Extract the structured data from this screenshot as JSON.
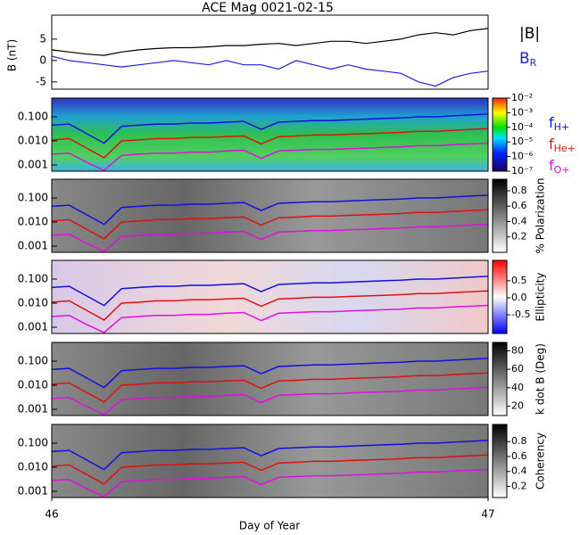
{
  "chart_data": [
    {
      "type": "line",
      "title": "ACE Mag 0021-02-15",
      "ylabel": "B (nT)",
      "x": [
        46.0,
        46.04,
        46.08,
        46.12,
        46.16,
        46.2,
        46.24,
        46.28,
        46.32,
        46.36,
        46.4,
        46.44,
        46.48,
        46.52,
        46.56,
        46.6,
        46.64,
        46.68,
        46.72,
        46.76,
        46.8,
        46.84,
        46.88,
        46.92,
        46.96,
        47.0
      ],
      "xlim": [
        46,
        47
      ],
      "ylim": [
        -6.7,
        10.6
      ],
      "yticks": [
        -5,
        0,
        5
      ],
      "series": [
        {
          "name": "|B|",
          "color": "#000000",
          "values": [
            2.5,
            2,
            1.5,
            1.2,
            2,
            2.5,
            2.8,
            3,
            3,
            3.2,
            3.5,
            3.5,
            3.8,
            4,
            3.5,
            4,
            4.5,
            4.5,
            4,
            4.5,
            5,
            6,
            6.5,
            6,
            7,
            7.5
          ]
        },
        {
          "name": "BR",
          "color": "#2020e0",
          "values": [
            1,
            0,
            -0.5,
            -1,
            -1.5,
            -1,
            -0.5,
            0,
            -0.5,
            -1,
            0,
            -1,
            -1,
            -2,
            0,
            -1,
            -2,
            -1,
            -2,
            -2.5,
            -3,
            -5,
            -6,
            -4,
            -3,
            -2.5
          ]
        }
      ]
    },
    {
      "type": "spectrogram",
      "xlabel": "Day of Year",
      "log_y": true,
      "x": [
        46.0,
        46.04,
        46.08,
        46.12,
        46.16,
        46.2,
        46.24,
        46.28,
        46.32,
        46.36,
        46.4,
        46.44,
        46.48,
        46.52,
        46.56,
        46.6,
        46.64,
        46.68,
        46.72,
        46.76,
        46.8,
        46.84,
        46.88,
        46.92,
        46.96,
        47.0
      ],
      "xlim": [
        46,
        47
      ],
      "xticks": [
        46,
        47
      ],
      "ylim": [
        0.00055,
        0.6
      ],
      "yticks": [
        {
          "value": 0.001,
          "label": "0.001"
        },
        {
          "value": 0.01,
          "label": "0.010"
        },
        {
          "value": 0.1,
          "label": "0.100"
        }
      ],
      "series": [
        {
          "name": "fH+",
          "color": "#1010e0",
          "values": [
            0.045,
            0.05,
            0.02,
            0.008,
            0.04,
            0.045,
            0.05,
            0.05,
            0.055,
            0.055,
            0.06,
            0.065,
            0.03,
            0.06,
            0.065,
            0.07,
            0.07,
            0.075,
            0.08,
            0.085,
            0.09,
            0.1,
            0.1,
            0.11,
            0.12,
            0.13
          ]
        },
        {
          "name": "fHe+",
          "color": "#e01010",
          "values": [
            0.011,
            0.0125,
            0.005,
            0.002,
            0.01,
            0.011,
            0.0125,
            0.0125,
            0.014,
            0.014,
            0.015,
            0.016,
            0.0075,
            0.015,
            0.016,
            0.0175,
            0.0175,
            0.019,
            0.02,
            0.021,
            0.0225,
            0.025,
            0.025,
            0.0275,
            0.03,
            0.0325
          ]
        },
        {
          "name": "fO+",
          "color": "#e010e0",
          "values": [
            0.0028,
            0.0031,
            0.0013,
            0.0006,
            0.0025,
            0.0028,
            0.0031,
            0.0031,
            0.0034,
            0.0034,
            0.0038,
            0.0041,
            0.0019,
            0.0038,
            0.0041,
            0.0044,
            0.0044,
            0.0047,
            0.005,
            0.0053,
            0.0056,
            0.0063,
            0.0063,
            0.0069,
            0.0075,
            0.0081
          ]
        }
      ],
      "panels": [
        {
          "colormap": "rainbow",
          "log_c": true,
          "clim": [
            1e-07,
            0.01
          ],
          "cticks": [
            {
              "value": 0.01,
              "label": "10⁻²"
            },
            {
              "value": 0.001,
              "label": "10⁻³"
            },
            {
              "value": 0.0001,
              "label": "10⁻⁴"
            },
            {
              "value": 1e-05,
              "label": "10⁻⁵"
            },
            {
              "value": 1e-06,
              "label": "10⁻⁶"
            },
            {
              "value": 1e-07,
              "label": "10⁻⁷"
            }
          ]
        },
        {
          "colormap": "gray",
          "clabel": "% Polarization",
          "clim": [
            0,
            0.95
          ],
          "cticks": [
            0.2,
            0.4,
            0.6,
            0.8
          ]
        },
        {
          "colormap": "bwr",
          "clabel": "Ellipticity",
          "clim": [
            -1.05,
            1.1
          ],
          "cticks": [
            -0.5,
            {
              "value": 0,
              "label": "0.0"
            },
            0.5
          ]
        },
        {
          "colormap": "gray",
          "clabel": "k dot B (Deg)",
          "clim": [
            10,
            89
          ],
          "cticks": [
            20,
            40,
            60,
            80
          ]
        },
        {
          "colormap": "gray",
          "clabel": "Coherency",
          "clim": [
            0.05,
            1.03
          ],
          "cticks": [
            0.2,
            0.4,
            0.6,
            0.8
          ]
        }
      ]
    }
  ]
}
